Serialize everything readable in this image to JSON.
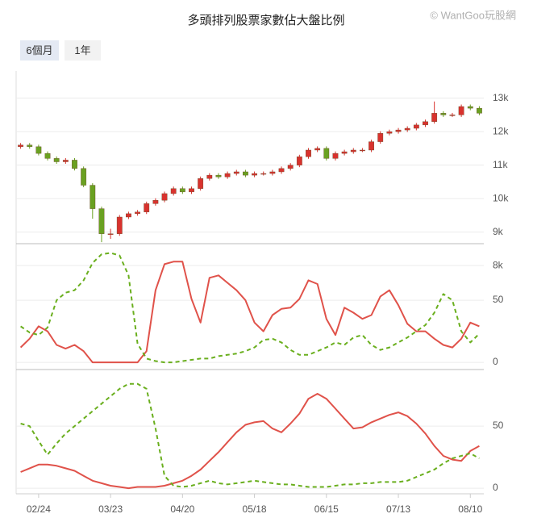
{
  "title": "多頭排列股票家數佔大盤比例",
  "watermark": "© WantGoo玩股網",
  "buttons": [
    "6個月",
    "1年"
  ],
  "chart_data": [
    {
      "type": "candlestick",
      "open": [
        11550,
        11600,
        11550,
        11350,
        11200,
        11100,
        11150,
        10900,
        10400,
        9700,
        8950,
        8950,
        9450,
        9550,
        9600,
        9850,
        9950,
        10150,
        10300,
        10200,
        10300,
        10600,
        10700,
        10650,
        10750,
        10800,
        10700,
        10750,
        10750,
        10800,
        10900,
        11000,
        11250,
        11450,
        11500,
        11200,
        11350,
        11400,
        11450,
        11450,
        11700,
        11950,
        12000,
        12050,
        12100,
        12200,
        12300,
        12550,
        12500,
        12500,
        12750,
        12700
      ],
      "high": [
        11660,
        11660,
        11610,
        11410,
        11260,
        11210,
        11210,
        10960,
        10460,
        9760,
        9100,
        9510,
        9610,
        9660,
        9910,
        10010,
        10210,
        10360,
        10360,
        10360,
        10660,
        10760,
        10760,
        10810,
        10860,
        10860,
        10810,
        10810,
        10860,
        10960,
        11060,
        11310,
        11510,
        11560,
        11560,
        11410,
        11460,
        11510,
        11510,
        11760,
        12010,
        12060,
        12110,
        12160,
        12260,
        12360,
        12900,
        12610,
        12560,
        12810,
        12810,
        12760
      ],
      "low": [
        11490,
        11490,
        11290,
        11140,
        11040,
        11040,
        10840,
        10340,
        9400,
        8700,
        8800,
        8890,
        9390,
        9490,
        9540,
        9790,
        9890,
        10090,
        10140,
        10140,
        10240,
        10540,
        10590,
        10590,
        10690,
        10640,
        10640,
        10690,
        10690,
        10740,
        10840,
        10940,
        11190,
        11390,
        11140,
        11140,
        11290,
        11340,
        11390,
        11390,
        11640,
        11890,
        11940,
        11990,
        12040,
        12140,
        12240,
        12440,
        12440,
        12440,
        12640,
        12490
      ],
      "close": [
        11600,
        11550,
        11350,
        11200,
        11100,
        11150,
        10900,
        10400,
        9700,
        8950,
        8950,
        9450,
        9550,
        9600,
        9850,
        9950,
        10150,
        10300,
        10200,
        10300,
        10600,
        10700,
        10650,
        10750,
        10800,
        10700,
        10750,
        10750,
        10800,
        10900,
        11000,
        11250,
        11450,
        11500,
        11200,
        11350,
        11400,
        11450,
        11450,
        11700,
        11950,
        12000,
        12050,
        12100,
        12200,
        12300,
        12550,
        12500,
        12500,
        12750,
        12700,
        12550
      ],
      "up_color": "#d9322e",
      "down_color": "#6aa121",
      "ylim": [
        7980,
        13811
      ],
      "yticks": [
        {
          "value": 8000,
          "label": "8k"
        },
        {
          "value": 9000,
          "label": "9k"
        },
        {
          "value": 10000,
          "label": "10k"
        },
        {
          "value": 11000,
          "label": "11k"
        },
        {
          "value": 12000,
          "label": "12k"
        },
        {
          "value": 13000,
          "label": "13k"
        }
      ],
      "grid": true
    },
    {
      "type": "line",
      "series": [
        {
          "color": "#e0524a",
          "dashed": false,
          "values": [
            12,
            19,
            29,
            25,
            14,
            11,
            14,
            9,
            0,
            0,
            0,
            0,
            0,
            0,
            9,
            58,
            79,
            81,
            81,
            51,
            32,
            68,
            70,
            64,
            58,
            50,
            32,
            25,
            38,
            43,
            44,
            51,
            66,
            63,
            35,
            22,
            44,
            40,
            35,
            38,
            53,
            58,
            46,
            31,
            25,
            25,
            19,
            14,
            12,
            19,
            32,
            29
          ]
        },
        {
          "color": "#6aaf1e",
          "dashed": true,
          "values": [
            29,
            24,
            22,
            28,
            50,
            56,
            58,
            66,
            80,
            87,
            88,
            86,
            70,
            15,
            3,
            1,
            0,
            0,
            1,
            2,
            3,
            3,
            5,
            6,
            7,
            9,
            12,
            18,
            19,
            16,
            10,
            6,
            6,
            9,
            12,
            16,
            14,
            20,
            22,
            14,
            10,
            12,
            16,
            20,
            25,
            30,
            40,
            55,
            50,
            25,
            16,
            23
          ]
        }
      ],
      "ylim": [
        -5.8,
        95.5
      ],
      "yticks": [
        0,
        50
      ],
      "grid": true
    },
    {
      "type": "line",
      "categories": [
        null,
        null,
        "02/24",
        null,
        null,
        null,
        null,
        null,
        null,
        null,
        "03/23",
        null,
        null,
        null,
        null,
        null,
        null,
        null,
        "04/20",
        null,
        null,
        null,
        null,
        null,
        null,
        null,
        "05/18",
        null,
        null,
        null,
        null,
        null,
        null,
        null,
        "06/15",
        null,
        null,
        null,
        null,
        null,
        null,
        null,
        "07/13",
        null,
        null,
        null,
        null,
        null,
        null,
        null,
        "08/10",
        null
      ],
      "series": [
        {
          "color": "#e0524a",
          "dashed": false,
          "values": [
            13,
            16,
            19,
            19,
            18,
            16,
            14,
            10,
            6,
            4,
            2,
            1,
            0,
            1,
            1,
            1,
            2,
            4,
            6,
            10,
            15,
            22,
            29,
            37,
            45,
            51,
            53,
            54,
            48,
            45,
            52,
            60,
            72,
            76,
            72,
            64,
            56,
            48,
            49,
            53,
            56,
            59,
            61,
            58,
            52,
            44,
            34,
            26,
            23,
            22,
            30,
            34
          ]
        },
        {
          "color": "#6aaf1e",
          "dashed": true,
          "values": [
            52,
            50,
            38,
            27,
            36,
            44,
            50,
            56,
            62,
            68,
            74,
            80,
            84,
            84,
            80,
            48,
            10,
            2,
            1,
            2,
            4,
            6,
            4,
            3,
            4,
            5,
            6,
            5,
            4,
            3,
            3,
            2,
            1,
            1,
            1,
            2,
            3,
            3,
            4,
            4,
            5,
            5,
            5,
            6,
            9,
            12,
            15,
            20,
            24,
            26,
            28,
            24
          ]
        }
      ],
      "ylim": [
        -4.5,
        94.2
      ],
      "yticks": [
        0,
        50
      ],
      "grid": true
    }
  ]
}
